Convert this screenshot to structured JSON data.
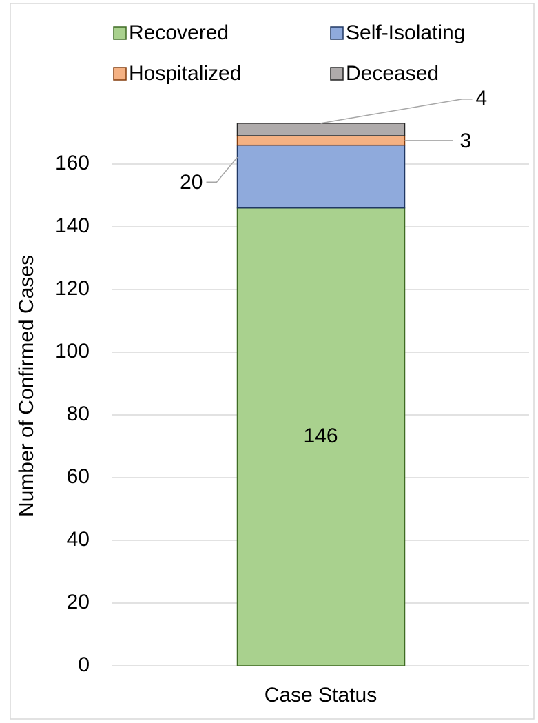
{
  "chart_data": {
    "type": "stacked-bar",
    "categories": [
      "Case Status"
    ],
    "y_label": "Number of Confirmed Cases",
    "series": [
      {
        "name": "Recovered",
        "color": "#a9d18e",
        "edge": "#3f6b23",
        "values": [
          146
        ]
      },
      {
        "name": "Self-Isolating",
        "color": "#8faadc",
        "edge": "#203864",
        "values": [
          20
        ]
      },
      {
        "name": "Hospitalized",
        "color": "#f4b183",
        "edge": "#843c0c",
        "values": [
          3
        ]
      },
      {
        "name": "Deceased",
        "color": "#afabab",
        "edge": "#262626",
        "values": [
          4
        ]
      }
    ],
    "ylim": [
      0,
      180
    ],
    "yticks": [
      0,
      20,
      40,
      60,
      80,
      100,
      120,
      140,
      160
    ],
    "grid": true
  }
}
